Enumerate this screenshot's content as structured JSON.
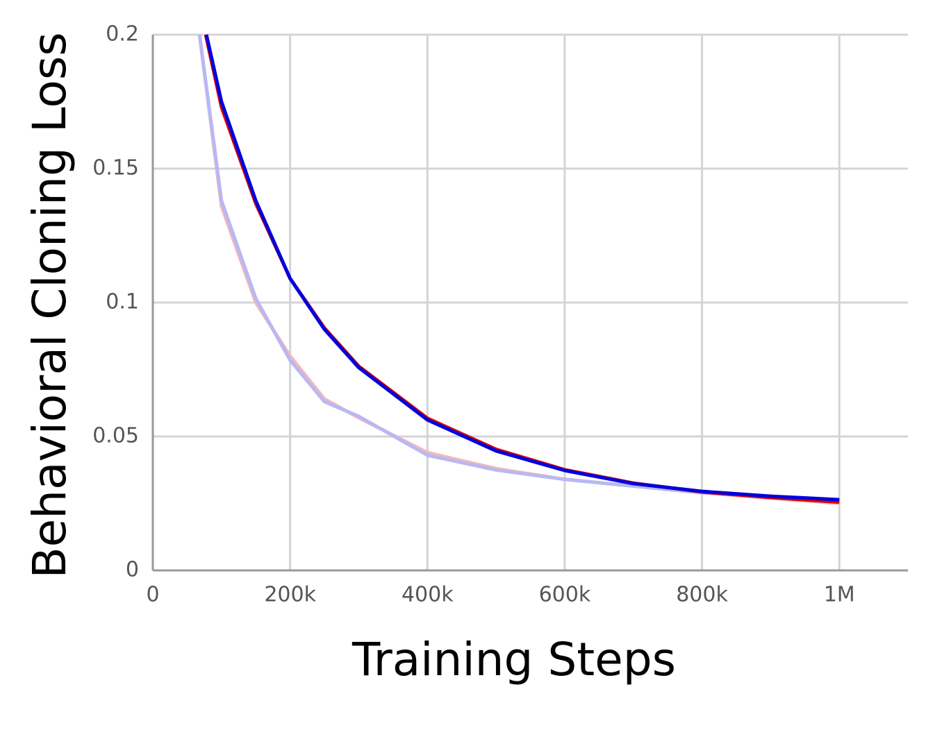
{
  "chart_data": {
    "type": "line",
    "x_label": "Training Steps",
    "y_label": "Behavioral Cloning Loss",
    "xlim": [
      0,
      1100000
    ],
    "ylim": [
      0,
      0.2
    ],
    "xticks": [
      0,
      {
        "value": 200000,
        "label": "200k"
      },
      {
        "value": 400000,
        "label": "400k"
      },
      {
        "value": 600000,
        "label": "600k"
      },
      {
        "value": 800000,
        "label": "800k"
      },
      {
        "value": 1000000,
        "label": "1M"
      }
    ],
    "yticks": [
      0,
      0.05,
      0.1,
      0.15,
      0.2
    ],
    "grid": true,
    "series": [
      {
        "color": "#f4b8b8",
        "x": [
          68000,
          100000,
          150000,
          200000,
          250000,
          300000,
          400000,
          500000,
          600000,
          800000,
          1000000
        ],
        "values": [
          0.2,
          0.136,
          0.1,
          0.08,
          0.064,
          0.057,
          0.044,
          0.038,
          0.034,
          0.029,
          0.025
        ]
      },
      {
        "color": "#b8b8f4",
        "x": [
          68000,
          100000,
          150000,
          200000,
          250000,
          300000,
          400000,
          500000,
          600000,
          800000,
          1000000
        ],
        "values": [
          0.2,
          0.138,
          0.1015,
          0.0785,
          0.063,
          0.0575,
          0.043,
          0.0375,
          0.034,
          0.029,
          0.026
        ]
      },
      {
        "color": "#dd0000",
        "x": [
          77000,
          100000,
          150000,
          200000,
          250000,
          300000,
          400000,
          500000,
          600000,
          700000,
          800000,
          900000,
          1000000
        ],
        "values": [
          0.2,
          0.173,
          0.137,
          0.109,
          0.0905,
          0.0762,
          0.0568,
          0.0452,
          0.0376,
          0.0326,
          0.0293,
          0.0272,
          0.0255
        ]
      },
      {
        "color": "#0000dd",
        "x": [
          78000,
          100000,
          150000,
          200000,
          250000,
          300000,
          400000,
          500000,
          600000,
          700000,
          800000,
          900000,
          1000000
        ],
        "values": [
          0.2,
          0.175,
          0.138,
          0.109,
          0.09,
          0.0757,
          0.0562,
          0.0446,
          0.0373,
          0.0324,
          0.0295,
          0.0277,
          0.0264
        ]
      }
    ]
  }
}
